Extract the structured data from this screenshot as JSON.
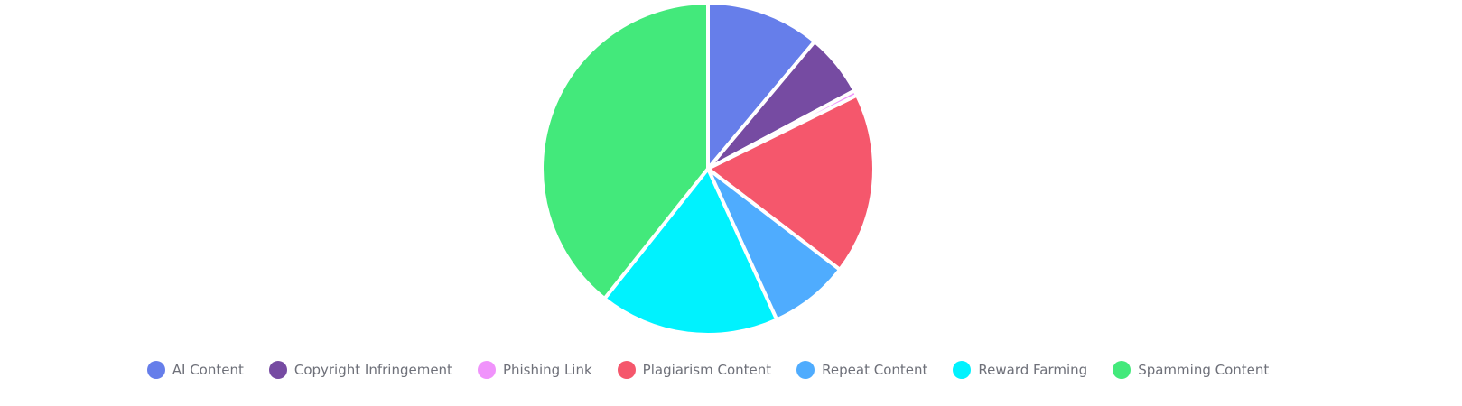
{
  "chart_data": {
    "type": "pie",
    "title": "",
    "legend_position": "bottom",
    "start_angle": "top, clockwise",
    "series": [
      {
        "name": "AI Content",
        "value": 11.1,
        "color": "#667eea"
      },
      {
        "name": "Copyright Infringement",
        "value": 6.1,
        "color": "#764ba2"
      },
      {
        "name": "Phishing Link",
        "value": 0.5,
        "color": "#f093fb"
      },
      {
        "name": "Plagiarism Content",
        "value": 17.7,
        "color": "#f5576c"
      },
      {
        "name": "Repeat Content",
        "value": 7.8,
        "color": "#4facfe"
      },
      {
        "name": "Reward Farming",
        "value": 17.5,
        "color": "#00f2fe"
      },
      {
        "name": "Spamming Content",
        "value": 39.3,
        "color": "#43e97b"
      }
    ]
  }
}
